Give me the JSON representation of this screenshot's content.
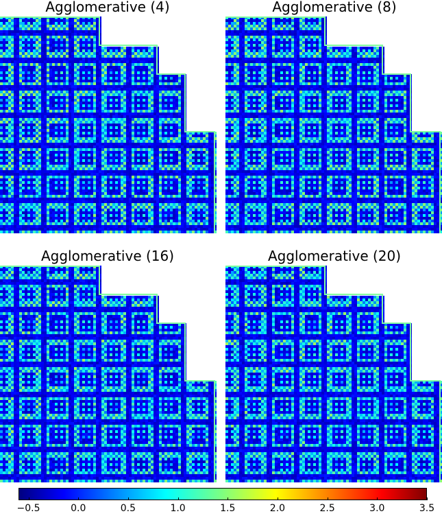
{
  "panels": [
    {
      "title": "Agglomerative (4)"
    },
    {
      "title": "Agglomerative (8)"
    },
    {
      "title": "Agglomerative (16)"
    },
    {
      "title": "Agglomerative (20)"
    }
  ],
  "colorbar": {
    "colormap": "jet",
    "vmin": -0.6,
    "vmax": 3.5,
    "ticks": [
      "−0.5",
      "0.0",
      "0.5",
      "1.0",
      "1.5",
      "2.0",
      "2.5",
      "3.0",
      "3.5"
    ],
    "tick_values": [
      -0.5,
      0.0,
      0.5,
      1.0,
      1.5,
      2.0,
      2.5,
      3.0,
      3.5
    ]
  },
  "chart_data": {
    "type": "heatmap",
    "colormap": "jet",
    "range": [
      -0.6,
      3.5
    ],
    "subplots": [
      "Agglomerative (4)",
      "Agglomerative (8)",
      "Agglomerative (16)",
      "Agglomerative (20)"
    ],
    "colorbar_ticks": [
      -0.5,
      0.0,
      0.5,
      1.0,
      1.5,
      2.0,
      2.5,
      3.0,
      3.5
    ]
  }
}
